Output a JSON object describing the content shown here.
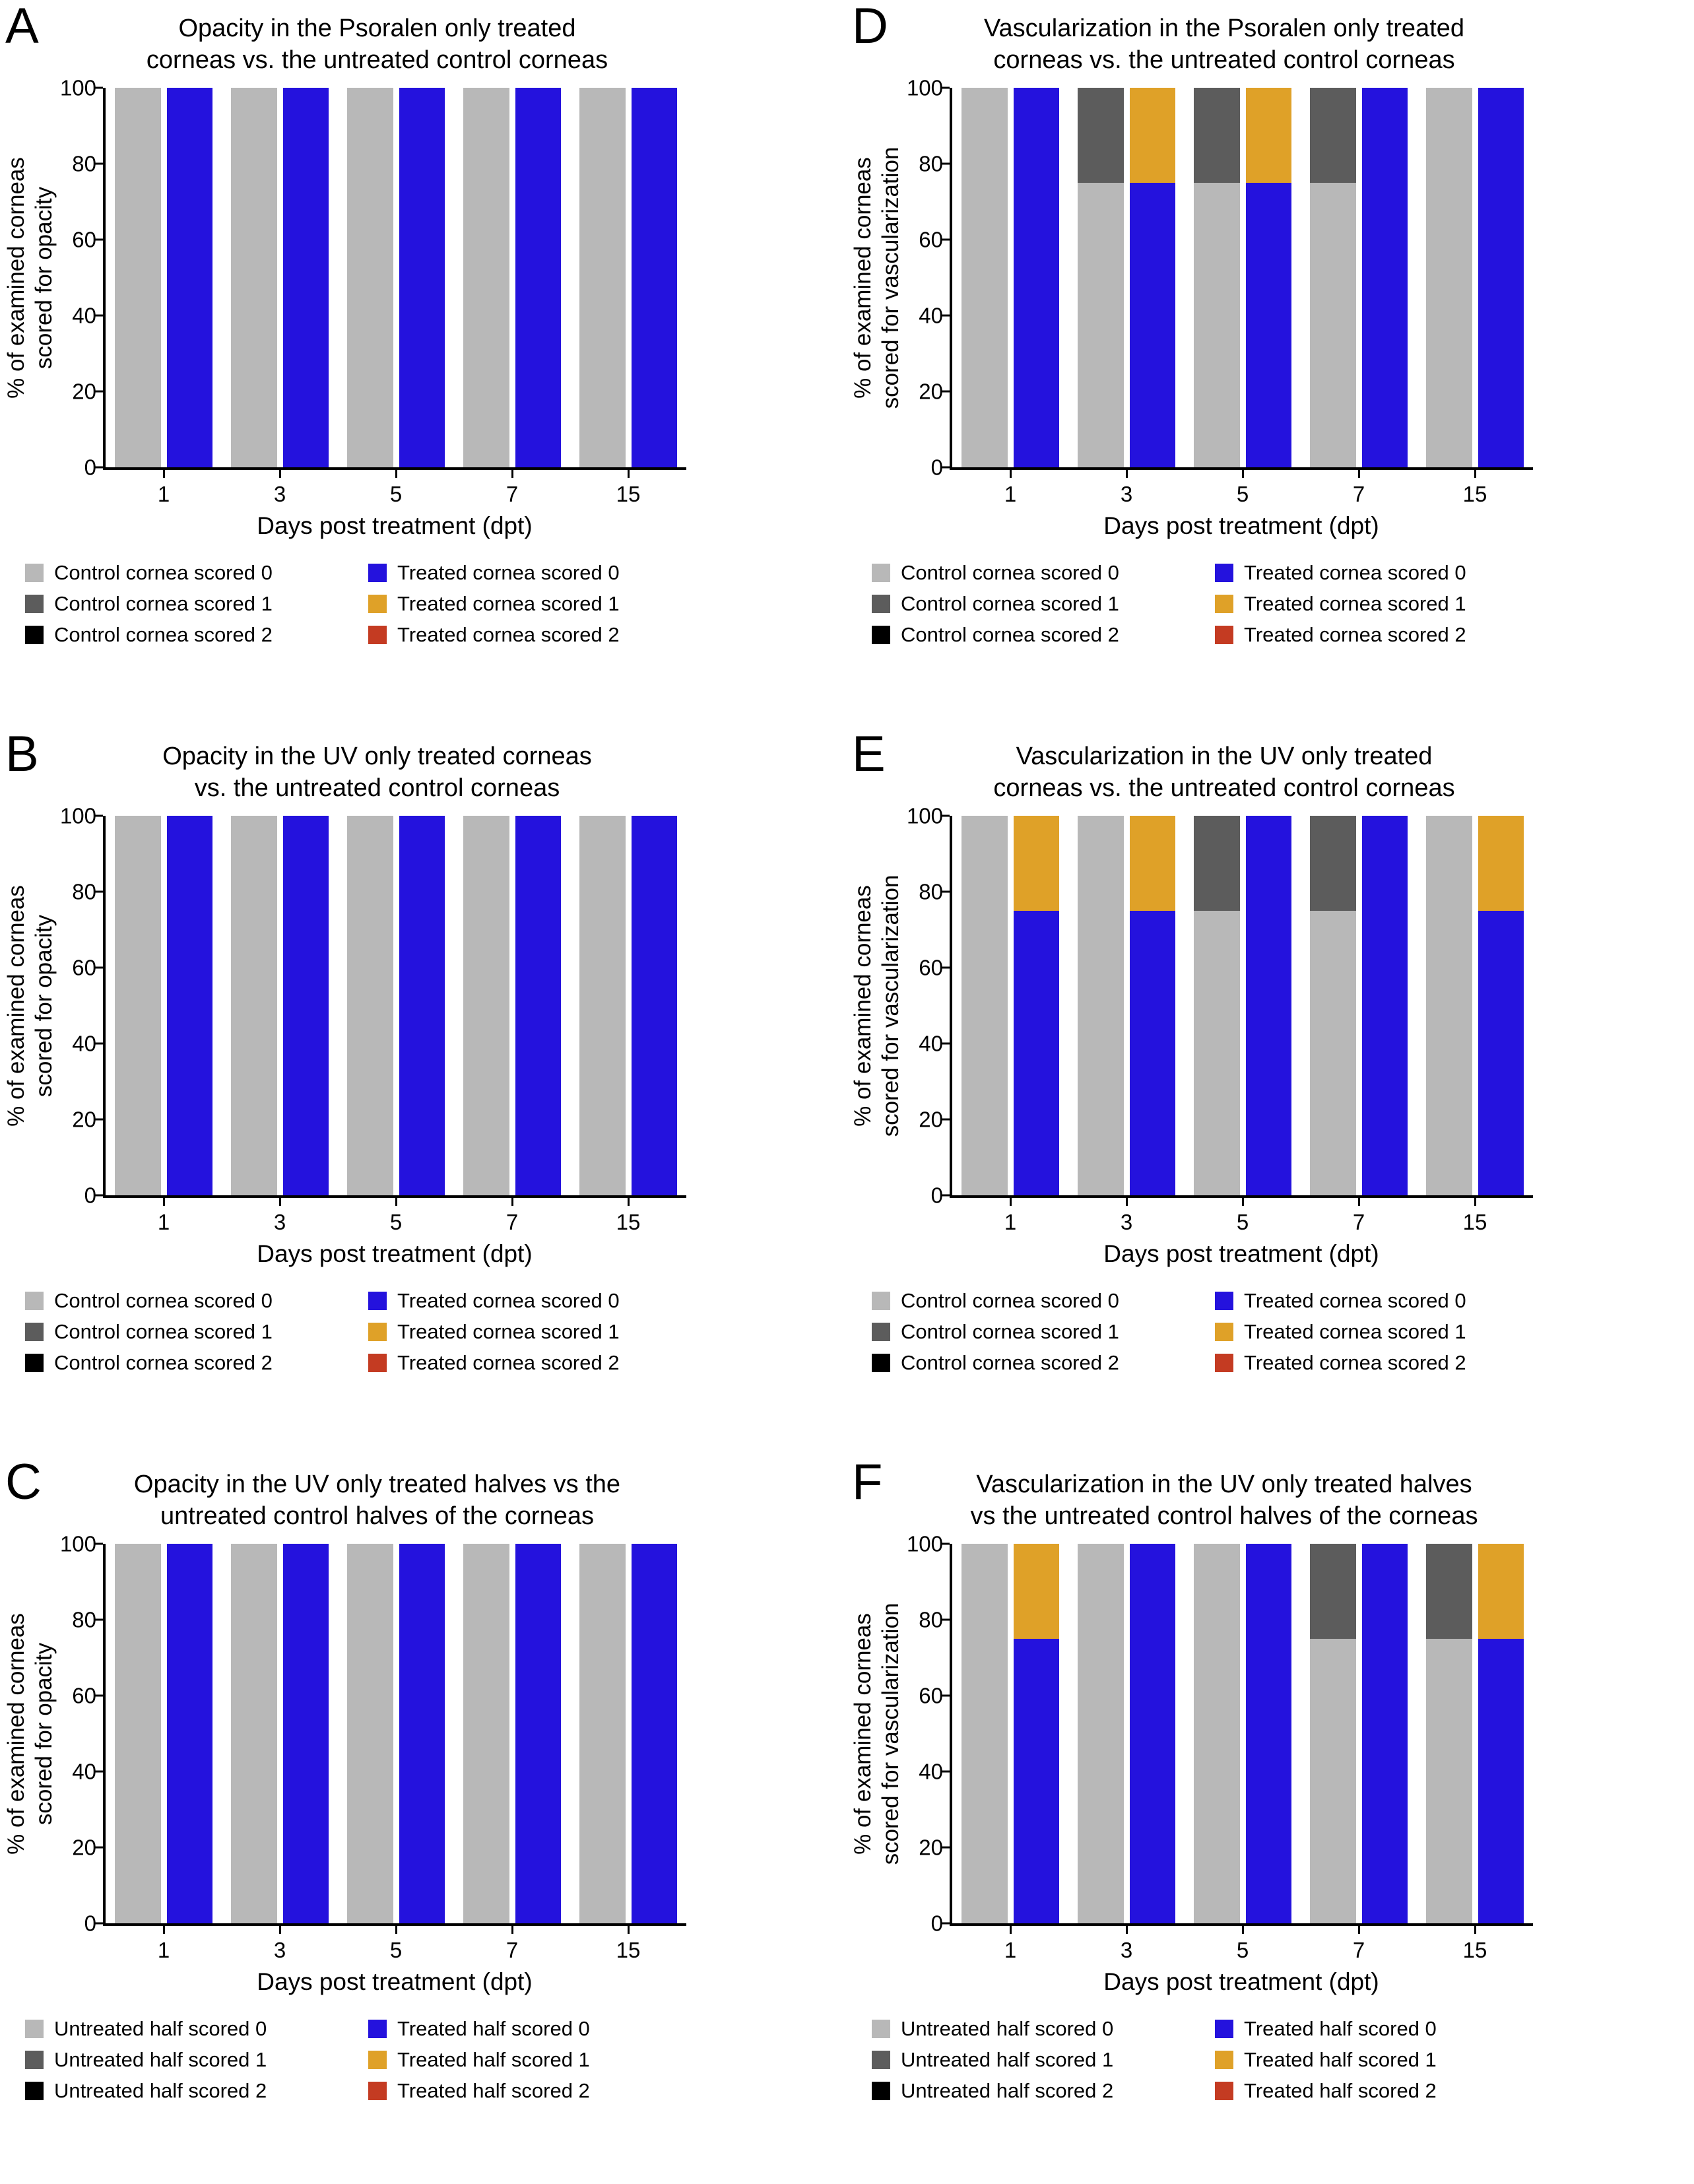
{
  "colors": {
    "axis": "#000000",
    "background": "#ffffff",
    "control": [
      "#b8b8b8",
      "#5c5c5c",
      "#000000"
    ],
    "treated": [
      "#2412dd",
      "#dfa128",
      "#c43b22"
    ]
  },
  "chart_data": [
    {
      "panel": "A",
      "type": "bar",
      "stacked": true,
      "title": [
        "Opacity in the Psoralen only treated",
        "corneas vs. the untreated control corneas"
      ],
      "ylabel": [
        "% of examined corneas",
        "scored for opacity"
      ],
      "xlabel": "Days post treatment (dpt)",
      "categories": [
        "1",
        "3",
        "5",
        "7",
        "15"
      ],
      "yticks": [
        0,
        20,
        40,
        60,
        80,
        100
      ],
      "ylim": [
        0,
        100
      ],
      "series": [
        {
          "name": "Control cornea scored 0",
          "role": "control",
          "score": 0,
          "values": [
            100,
            100,
            100,
            100,
            100
          ]
        },
        {
          "name": "Control cornea scored 1",
          "role": "control",
          "score": 1,
          "values": [
            0,
            0,
            0,
            0,
            0
          ]
        },
        {
          "name": "Control cornea scored 2",
          "role": "control",
          "score": 2,
          "values": [
            0,
            0,
            0,
            0,
            0
          ]
        },
        {
          "name": "Treated cornea scored 0",
          "role": "treated",
          "score": 0,
          "values": [
            100,
            100,
            100,
            100,
            100
          ]
        },
        {
          "name": "Treated cornea scored 1",
          "role": "treated",
          "score": 1,
          "values": [
            0,
            0,
            0,
            0,
            0
          ]
        },
        {
          "name": "Treated cornea scored 2",
          "role": "treated",
          "score": 2,
          "values": [
            0,
            0,
            0,
            0,
            0
          ]
        }
      ],
      "legend": {
        "left": [
          "Control cornea scored 0",
          "Control cornea scored 1",
          "Control cornea scored 2"
        ],
        "right": [
          "Treated cornea scored 0",
          "Treated cornea scored 1",
          "Treated cornea scored 2"
        ]
      }
    },
    {
      "panel": "B",
      "type": "bar",
      "stacked": true,
      "title": [
        "Opacity in the UV only treated corneas",
        "vs. the untreated control corneas"
      ],
      "ylabel": [
        "% of examined corneas",
        "scored for opacity"
      ],
      "xlabel": "Days post treatment (dpt)",
      "categories": [
        "1",
        "3",
        "5",
        "7",
        "15"
      ],
      "yticks": [
        0,
        20,
        40,
        60,
        80,
        100
      ],
      "ylim": [
        0,
        100
      ],
      "series": [
        {
          "name": "Control cornea scored 0",
          "role": "control",
          "score": 0,
          "values": [
            100,
            100,
            100,
            100,
            100
          ]
        },
        {
          "name": "Control cornea scored 1",
          "role": "control",
          "score": 1,
          "values": [
            0,
            0,
            0,
            0,
            0
          ]
        },
        {
          "name": "Control cornea scored 2",
          "role": "control",
          "score": 2,
          "values": [
            0,
            0,
            0,
            0,
            0
          ]
        },
        {
          "name": "Treated cornea scored 0",
          "role": "treated",
          "score": 0,
          "values": [
            100,
            100,
            100,
            100,
            100
          ]
        },
        {
          "name": "Treated cornea scored 1",
          "role": "treated",
          "score": 1,
          "values": [
            0,
            0,
            0,
            0,
            0
          ]
        },
        {
          "name": "Treated cornea scored 2",
          "role": "treated",
          "score": 2,
          "values": [
            0,
            0,
            0,
            0,
            0
          ]
        }
      ],
      "legend": {
        "left": [
          "Control cornea scored 0",
          "Control cornea scored 1",
          "Control cornea scored 2"
        ],
        "right": [
          "Treated cornea scored 0",
          "Treated cornea scored 1",
          "Treated cornea scored 2"
        ]
      }
    },
    {
      "panel": "C",
      "type": "bar",
      "stacked": true,
      "title": [
        "Opacity in the UV only treated halves vs the",
        "untreated control halves of the corneas"
      ],
      "ylabel": [
        "% of examined corneas",
        "scored for opacity"
      ],
      "xlabel": "Days post treatment (dpt)",
      "categories": [
        "1",
        "3",
        "5",
        "7",
        "15"
      ],
      "yticks": [
        0,
        20,
        40,
        60,
        80,
        100
      ],
      "ylim": [
        0,
        100
      ],
      "series": [
        {
          "name": "Untreated half scored 0",
          "role": "control",
          "score": 0,
          "values": [
            100,
            100,
            100,
            100,
            100
          ]
        },
        {
          "name": "Untreated half scored 1",
          "role": "control",
          "score": 1,
          "values": [
            0,
            0,
            0,
            0,
            0
          ]
        },
        {
          "name": "Untreated half scored 2",
          "role": "control",
          "score": 2,
          "values": [
            0,
            0,
            0,
            0,
            0
          ]
        },
        {
          "name": "Treated half scored 0",
          "role": "treated",
          "score": 0,
          "values": [
            100,
            100,
            100,
            100,
            100
          ]
        },
        {
          "name": "Treated half scored 1",
          "role": "treated",
          "score": 1,
          "values": [
            0,
            0,
            0,
            0,
            0
          ]
        },
        {
          "name": "Treated half scored 2",
          "role": "treated",
          "score": 2,
          "values": [
            0,
            0,
            0,
            0,
            0
          ]
        }
      ],
      "legend": {
        "left": [
          "Untreated half scored 0",
          "Untreated half scored 1",
          "Untreated half scored 2"
        ],
        "right": [
          "Treated half scored 0",
          "Treated half scored 1",
          "Treated half scored 2"
        ]
      }
    },
    {
      "panel": "D",
      "type": "bar",
      "stacked": true,
      "title": [
        "Vascularization in the Psoralen only treated",
        "corneas vs. the untreated control corneas"
      ],
      "ylabel": [
        "% of examined corneas",
        "scored for vascularization"
      ],
      "xlabel": "Days post treatment (dpt)",
      "categories": [
        "1",
        "3",
        "5",
        "7",
        "15"
      ],
      "yticks": [
        0,
        20,
        40,
        60,
        80,
        100
      ],
      "ylim": [
        0,
        100
      ],
      "series": [
        {
          "name": "Control cornea scored 0",
          "role": "control",
          "score": 0,
          "values": [
            100,
            75,
            75,
            75,
            100
          ]
        },
        {
          "name": "Control cornea scored 1",
          "role": "control",
          "score": 1,
          "values": [
            0,
            25,
            25,
            25,
            0
          ]
        },
        {
          "name": "Control cornea scored 2",
          "role": "control",
          "score": 2,
          "values": [
            0,
            0,
            0,
            0,
            0
          ]
        },
        {
          "name": "Treated cornea scored 0",
          "role": "treated",
          "score": 0,
          "values": [
            100,
            75,
            75,
            100,
            100
          ]
        },
        {
          "name": "Treated cornea scored 1",
          "role": "treated",
          "score": 1,
          "values": [
            0,
            25,
            25,
            0,
            0
          ]
        },
        {
          "name": "Treated cornea scored 2",
          "role": "treated",
          "score": 2,
          "values": [
            0,
            0,
            0,
            0,
            0
          ]
        }
      ],
      "legend": {
        "left": [
          "Control cornea scored 0",
          "Control cornea scored 1",
          "Control cornea scored 2"
        ],
        "right": [
          "Treated cornea scored 0",
          "Treated cornea scored 1",
          "Treated cornea scored 2"
        ]
      }
    },
    {
      "panel": "E",
      "type": "bar",
      "stacked": true,
      "title": [
        "Vascularization in the UV only treated",
        "corneas vs. the untreated control corneas"
      ],
      "ylabel": [
        "% of examined corneas",
        "scored for vascularization"
      ],
      "xlabel": "Days post treatment (dpt)",
      "categories": [
        "1",
        "3",
        "5",
        "7",
        "15"
      ],
      "yticks": [
        0,
        20,
        40,
        60,
        80,
        100
      ],
      "ylim": [
        0,
        100
      ],
      "series": [
        {
          "name": "Control cornea scored 0",
          "role": "control",
          "score": 0,
          "values": [
            100,
            100,
            75,
            75,
            100
          ]
        },
        {
          "name": "Control cornea scored 1",
          "role": "control",
          "score": 1,
          "values": [
            0,
            0,
            25,
            25,
            0
          ]
        },
        {
          "name": "Control cornea scored 2",
          "role": "control",
          "score": 2,
          "values": [
            0,
            0,
            0,
            0,
            0
          ]
        },
        {
          "name": "Treated cornea scored 0",
          "role": "treated",
          "score": 0,
          "values": [
            75,
            75,
            100,
            100,
            75
          ]
        },
        {
          "name": "Treated cornea scored 1",
          "role": "treated",
          "score": 1,
          "values": [
            25,
            25,
            0,
            0,
            25
          ]
        },
        {
          "name": "Treated cornea scored 2",
          "role": "treated",
          "score": 2,
          "values": [
            0,
            0,
            0,
            0,
            0
          ]
        }
      ],
      "legend": {
        "left": [
          "Control cornea scored 0",
          "Control cornea scored 1",
          "Control cornea scored 2"
        ],
        "right": [
          "Treated cornea scored 0",
          "Treated cornea scored 1",
          "Treated cornea scored 2"
        ]
      }
    },
    {
      "panel": "F",
      "type": "bar",
      "stacked": true,
      "title": [
        "Vascularization in the UV only treated halves",
        "vs the untreated control halves of the corneas"
      ],
      "ylabel": [
        "% of examined corneas",
        "scored for vascularization"
      ],
      "xlabel": "Days post treatment (dpt)",
      "categories": [
        "1",
        "3",
        "5",
        "7",
        "15"
      ],
      "yticks": [
        0,
        20,
        40,
        60,
        80,
        100
      ],
      "ylim": [
        0,
        100
      ],
      "series": [
        {
          "name": "Untreated half scored 0",
          "role": "control",
          "score": 0,
          "values": [
            100,
            100,
            100,
            75,
            75
          ]
        },
        {
          "name": "Untreated half scored 1",
          "role": "control",
          "score": 1,
          "values": [
            0,
            0,
            0,
            25,
            25
          ]
        },
        {
          "name": "Untreated half scored 2",
          "role": "control",
          "score": 2,
          "values": [
            0,
            0,
            0,
            0,
            0
          ]
        },
        {
          "name": "Treated half scored 0",
          "role": "treated",
          "score": 0,
          "values": [
            75,
            100,
            100,
            100,
            75
          ]
        },
        {
          "name": "Treated half scored 1",
          "role": "treated",
          "score": 1,
          "values": [
            25,
            0,
            0,
            0,
            25
          ]
        },
        {
          "name": "Treated half scored 2",
          "role": "treated",
          "score": 2,
          "values": [
            0,
            0,
            0,
            0,
            0
          ]
        }
      ],
      "legend": {
        "left": [
          "Untreated half scored 0",
          "Untreated half scored 1",
          "Untreated half scored 2"
        ],
        "right": [
          "Treated half scored 0",
          "Treated half scored 1",
          "Treated half scored 2"
        ]
      }
    }
  ]
}
